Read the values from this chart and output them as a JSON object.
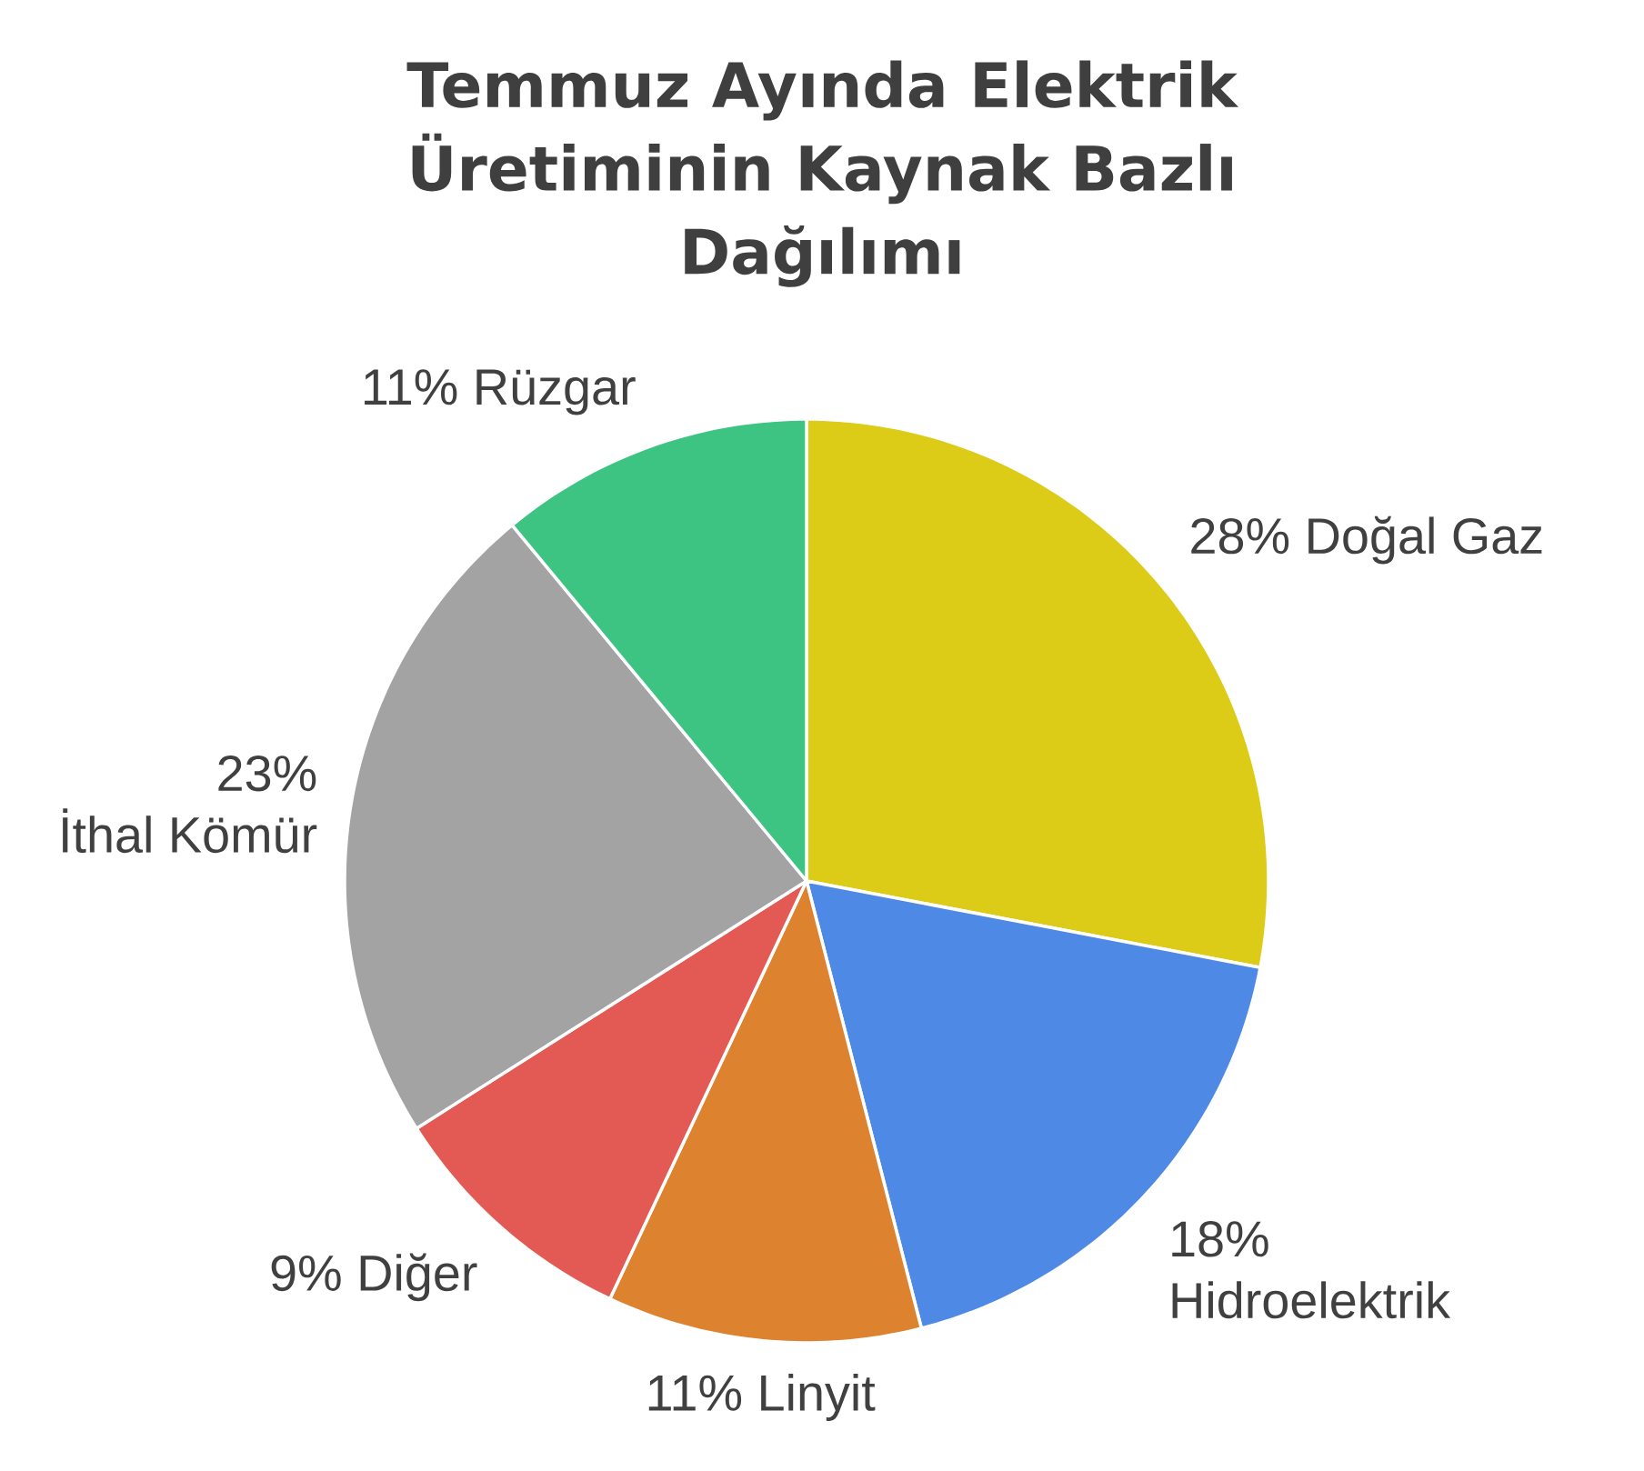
{
  "chart_data": {
    "type": "pie",
    "title": "Temmuz Ayında Elektrik Üretiminin Kaynak Bazlı Dağılımı",
    "categories": [
      "Doğal Gaz",
      "Hidroelektrik",
      "Linyit",
      "Diğer",
      "İthal Kömür",
      "Rüzgar"
    ],
    "values": [
      28,
      18,
      11,
      9,
      23,
      11
    ],
    "value_labels": [
      "28%",
      "18%",
      "11%",
      "9%",
      "23%",
      "11%"
    ],
    "colors": [
      "#dccb17",
      "#4e89e5",
      "#dd8330",
      "#e35a55",
      "#a3a3a3",
      "#3ec482"
    ]
  }
}
